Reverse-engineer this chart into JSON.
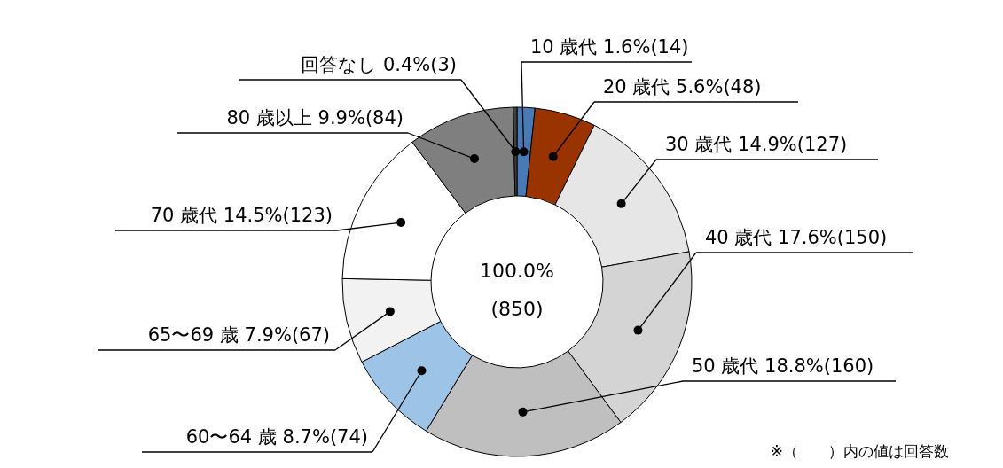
{
  "chart_data": {
    "type": "donut",
    "categories": [
      "10 歳代",
      "20 歳代",
      "30 歳代",
      "40 歳代",
      "50 歳代",
      "60〜64 歳",
      "65〜69 歳",
      "70 歳代",
      "80 歳以上",
      "回答なし"
    ],
    "values": [
      14,
      48,
      127,
      150,
      160,
      74,
      67,
      123,
      84,
      3
    ],
    "value_labels": [
      "1.6%(14)",
      "5.6%(48)",
      "14.9%(127)",
      "17.6%(150)",
      "18.8%(160)",
      "8.7%(74)",
      "7.9%(67)",
      "14.5%(123)",
      "9.9%(84)",
      "0.4%(3)"
    ],
    "colors": [
      "#4a7ab5",
      "#993300",
      "#e6e6e6",
      "#d4d4d4",
      "#bfbfbf",
      "#9dc3e6",
      "#f2f2f2",
      "#ffffff",
      "#7f7f7f",
      "#404040"
    ],
    "annotations": [
      "100.0%",
      "(850)",
      "※（　　）内の値は回答数"
    ]
  }
}
